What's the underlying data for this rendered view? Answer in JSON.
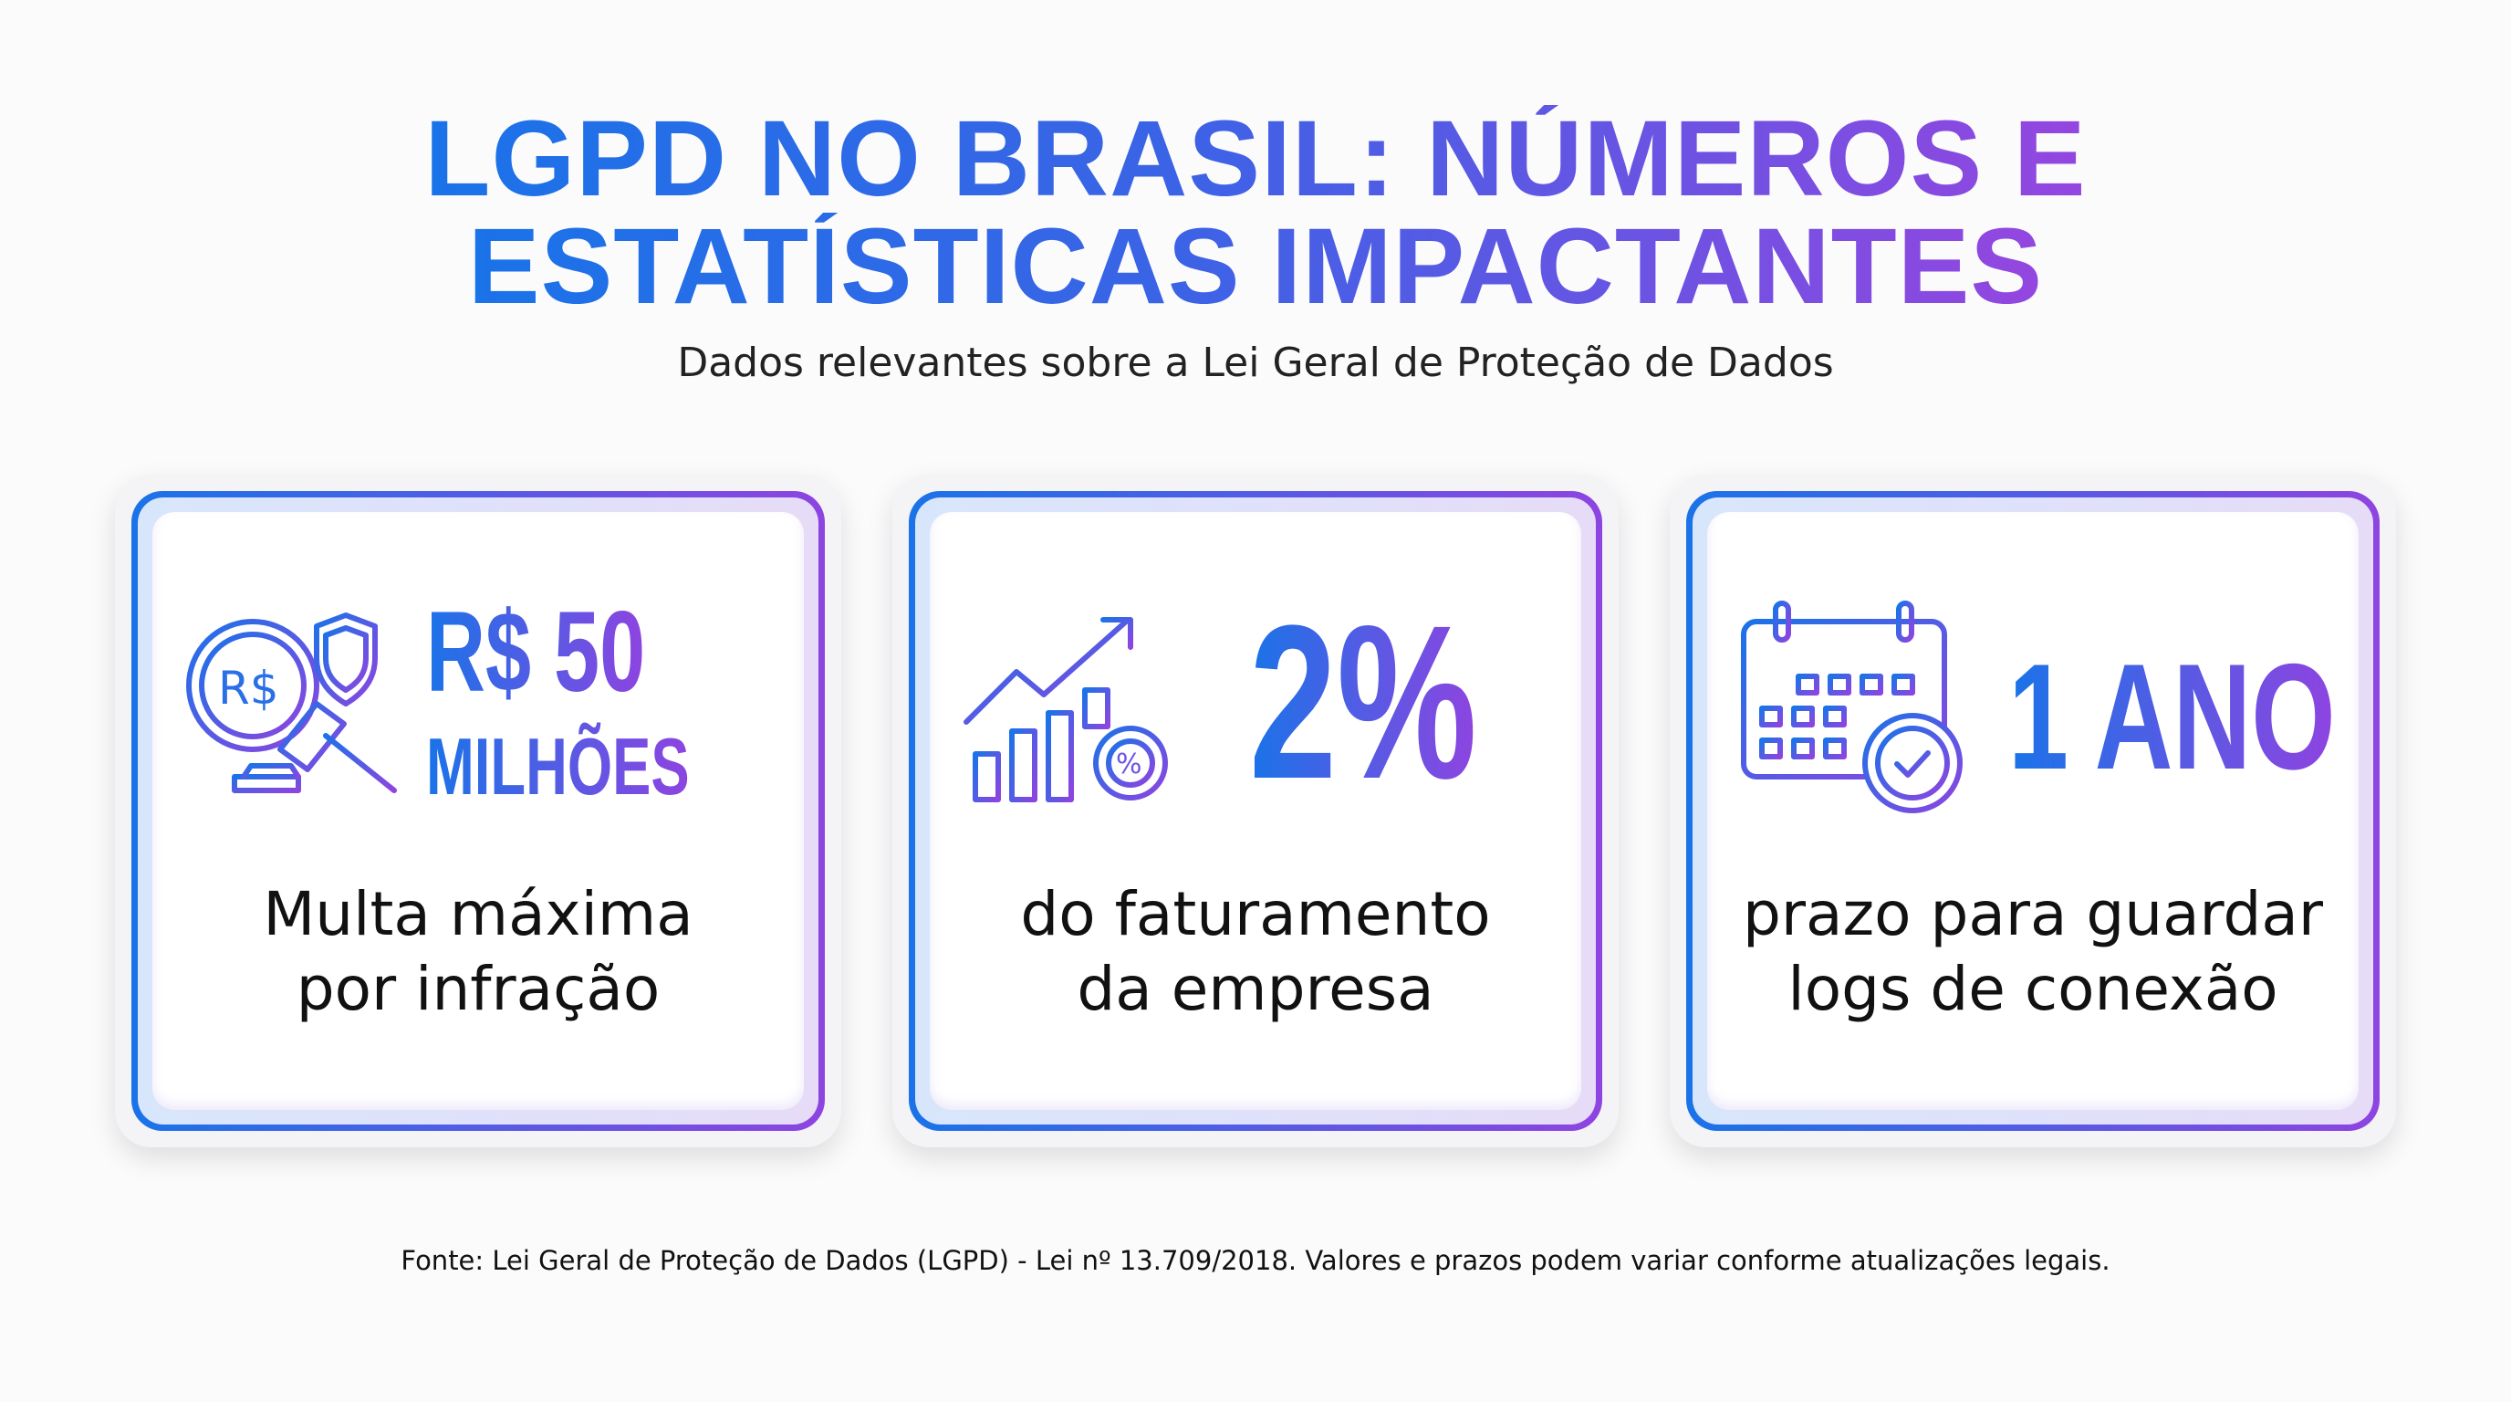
{
  "header": {
    "title_line1": "LGPD NO BRASIL: NÚMEROS E",
    "title_line2": "ESTATÍSTICAS IMPACTANTES",
    "subtitle": "Dados relevantes sobre a Lei Geral de Proteção de Dados"
  },
  "colors": {
    "accent_blue": "#1a73e8",
    "accent_purple": "#8e44e0"
  },
  "cards": [
    {
      "icon": "gavel-magnifier-shield-icon",
      "value_line1": "R$ 50",
      "value_line2": "MILHÕES",
      "desc_line1": "Multa máxima",
      "desc_line2": "por infração"
    },
    {
      "icon": "growth-chart-percent-gear-icon",
      "value_line1": "2%",
      "desc_line1": "do faturamento",
      "desc_line2": "da empresa"
    },
    {
      "icon": "calendar-check-icon",
      "value_line1": "1 ANO",
      "desc_line1": "prazo para guardar",
      "desc_line2": "logs de conexão"
    }
  ],
  "footer": "Fonte: Lei Geral de Proteção de Dados (LGPD) - Lei nº 13.709/2018. Valores e prazos podem variar conforme atualizações legais."
}
